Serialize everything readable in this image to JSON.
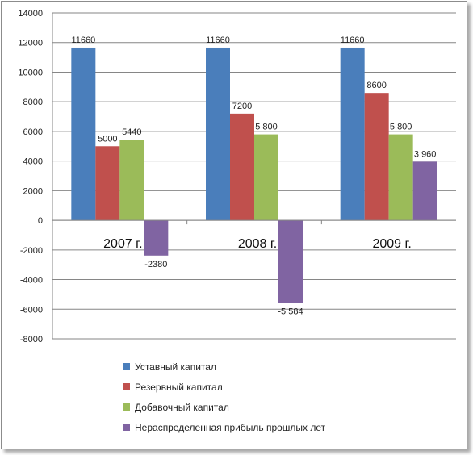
{
  "chart_data": {
    "type": "bar",
    "categories": [
      "2007 г.",
      "2008 г.",
      "2009 г."
    ],
    "series": [
      {
        "name": "Уставный капитал",
        "color": "#4a7ebb",
        "values": [
          11660,
          11660,
          11660
        ],
        "labels": [
          "11660",
          "11660",
          "11660"
        ]
      },
      {
        "name": "Резервный капитал",
        "color": "#c0504d",
        "values": [
          5000,
          7200,
          8600
        ],
        "labels": [
          "5000",
          "7200",
          "8600"
        ]
      },
      {
        "name": "Добавочный капитал",
        "color": "#9bbb59",
        "values": [
          5440,
          5800,
          5800
        ],
        "labels": [
          "5440",
          "5 800",
          "5 800"
        ]
      },
      {
        "name": "Нераспределенная прибыль прошлых лет",
        "color": "#8064a2",
        "values": [
          -2380,
          -5584,
          3960
        ],
        "labels": [
          "-2380",
          "-5 584",
          "3 960"
        ]
      }
    ],
    "ylim": [
      -8000,
      14000
    ],
    "yticks": [
      "14000",
      "12000",
      "10000",
      "8000",
      "6000",
      "4000",
      "2000",
      "0",
      "-2000",
      "-4000",
      "-6000",
      "-8000"
    ],
    "ytick_values": [
      14000,
      12000,
      10000,
      8000,
      6000,
      4000,
      2000,
      0,
      -2000,
      -4000,
      -6000,
      -8000
    ],
    "grid": true,
    "legend": "bottom",
    "title": "",
    "xlabel": "",
    "ylabel": ""
  }
}
